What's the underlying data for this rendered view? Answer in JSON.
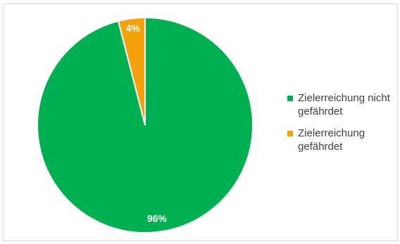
{
  "chart_data": {
    "type": "pie",
    "title": "",
    "start_angle_deg": 0,
    "direction": "clockwise",
    "slices": [
      {
        "name": "Zielerreichung nicht gefährdet",
        "value": 96,
        "label": "96%",
        "color": "#00b050"
      },
      {
        "name": "Zielerreichung gefährdet",
        "value": 4,
        "label": "4%",
        "color": "#f5a20a"
      }
    ],
    "legend_position": "right"
  }
}
